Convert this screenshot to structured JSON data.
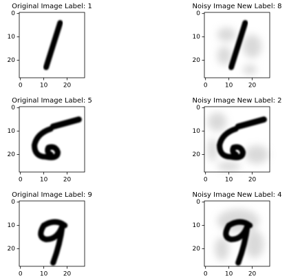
{
  "chart_data": [
    {
      "type": "image",
      "title": "Original Image Label: 1",
      "xlim": [
        -0.5,
        27.5
      ],
      "ylim": [
        27.5,
        -0.5
      ],
      "xticks": [
        0,
        10,
        20
      ],
      "yticks": [
        0,
        10,
        20
      ]
    },
    {
      "type": "image",
      "title": "Noisy Image New Label: 8",
      "xlim": [
        -0.5,
        27.5
      ],
      "ylim": [
        27.5,
        -0.5
      ],
      "xticks": [
        0,
        10,
        20
      ],
      "yticks": [
        0,
        10,
        20
      ]
    },
    {
      "type": "image",
      "title": "Original Image Label: 5",
      "xlim": [
        -0.5,
        27.5
      ],
      "ylim": [
        27.5,
        -0.5
      ],
      "xticks": [
        0,
        10,
        20
      ],
      "yticks": [
        0,
        10,
        20
      ]
    },
    {
      "type": "image",
      "title": "Noisy Image New Label: 2",
      "xlim": [
        -0.5,
        27.5
      ],
      "ylim": [
        27.5,
        -0.5
      ],
      "xticks": [
        0,
        10,
        20
      ],
      "yticks": [
        0,
        10,
        20
      ]
    },
    {
      "type": "image",
      "title": "Original Image Label: 9",
      "xlim": [
        -0.5,
        27.5
      ],
      "ylim": [
        27.5,
        -0.5
      ],
      "xticks": [
        0,
        10,
        20
      ],
      "yticks": [
        0,
        10,
        20
      ]
    },
    {
      "type": "image",
      "title": "Noisy Image New Label: 4",
      "xlim": [
        -0.5,
        27.5
      ],
      "ylim": [
        27.5,
        -0.5
      ],
      "xticks": [
        0,
        10,
        20
      ],
      "yticks": [
        0,
        10,
        20
      ]
    }
  ]
}
